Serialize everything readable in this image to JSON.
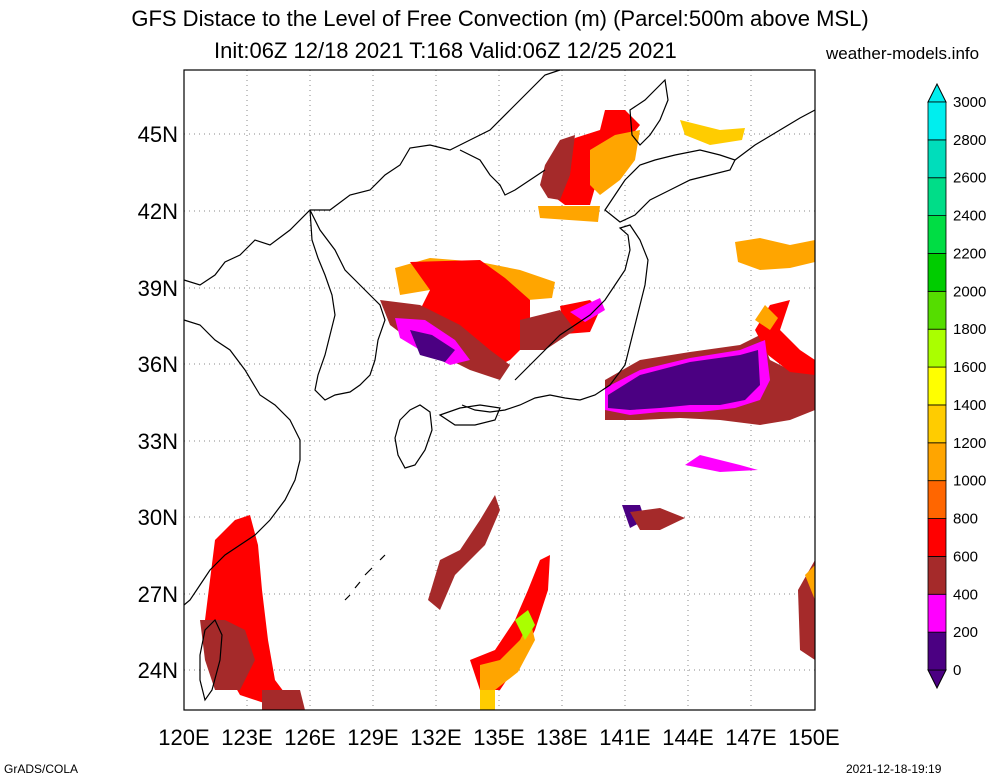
{
  "header": {
    "title_line1": "GFS Distace to the Level of Free Convection (m) (Parcel:500m above MSL)",
    "title_line2": "Init:06Z 12/18 2021 T:168 Valid:06Z 12/25 2021",
    "site": "weather-models.info"
  },
  "footer": {
    "left": "GrADS/COLA",
    "right": "2021-12-18-19:19"
  },
  "map": {
    "lon_labels": [
      "120E",
      "123E",
      "126E",
      "129E",
      "132E",
      "135E",
      "138E",
      "141E",
      "144E",
      "147E",
      "150E"
    ],
    "lat_labels": [
      "24N",
      "27N",
      "30N",
      "33N",
      "36N",
      "39N",
      "42N",
      "45N"
    ]
  },
  "colorbar": {
    "levels": [
      "0",
      "200",
      "400",
      "600",
      "800",
      "1000",
      "1200",
      "1400",
      "1600",
      "1800",
      "2000",
      "2200",
      "2400",
      "2600",
      "2800",
      "3000"
    ],
    "colors": [
      "#4b0082",
      "#ff00ff",
      "#a52a2a",
      "#ff0000",
      "#ff6600",
      "#ffa500",
      "#ffcc00",
      "#ffff00",
      "#aaff00",
      "#55dd00",
      "#00cc00",
      "#00dd44",
      "#00dd88",
      "#00ddbb",
      "#00eeee"
    ],
    "over_color": "#00eeee",
    "under_color": "#4b0082"
  }
}
